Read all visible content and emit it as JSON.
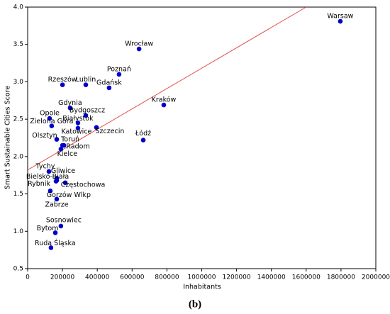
{
  "chart_data": {
    "type": "scatter",
    "xlabel": "Inhabitants",
    "ylabel": "Smart Sustainable Cities Score",
    "caption": "(b)",
    "color": "#0000cc",
    "points": [
      {
        "name": "Warsaw",
        "x": 1796000,
        "y": 3.81
      },
      {
        "name": "Wrocław",
        "x": 640000,
        "y": 3.44
      },
      {
        "name": "Poznań",
        "x": 525000,
        "y": 3.1
      },
      {
        "name": "Rzeszów",
        "x": 200000,
        "y": 2.96
      },
      {
        "name": "Lublin",
        "x": 334000,
        "y": 2.96
      },
      {
        "name": "Gdańsk",
        "x": 468000,
        "y": 2.92
      },
      {
        "name": "Kraków",
        "x": 782000,
        "y": 2.69
      },
      {
        "name": "Gdynia",
        "x": 244000,
        "y": 2.65
      },
      {
        "name": "Bydgoszcz",
        "x": 334000,
        "y": 2.55
      },
      {
        "name": "Opole",
        "x": 126000,
        "y": 2.51
      },
      {
        "name": "Białystok",
        "x": 289000,
        "y": 2.45
      },
      {
        "name": "Zielona Góra",
        "x": 138000,
        "y": 2.41
      },
      {
        "name": "Katowice",
        "x": 289000,
        "y": 2.38
      },
      {
        "name": "Szczecin",
        "x": 395000,
        "y": 2.39
      },
      {
        "name": "Łódź",
        "x": 664000,
        "y": 2.22
      },
      {
        "name": "Olsztyn",
        "x": 167000,
        "y": 2.23
      },
      {
        "name": "Toruń",
        "x": 200000,
        "y": 2.15
      },
      {
        "name": "Radom",
        "x": 208000,
        "y": 2.15
      },
      {
        "name": "Kielce",
        "x": 191000,
        "y": 2.1
      },
      {
        "name": "Tychy",
        "x": 122000,
        "y": 1.8
      },
      {
        "name": "Gliwice",
        "x": 167000,
        "y": 1.71
      },
      {
        "name": "Bielsko-Biała",
        "x": 167000,
        "y": 1.68
      },
      {
        "name": "Rybnik",
        "x": 163000,
        "y": 1.67
      },
      {
        "name": "Częstochowa",
        "x": 216000,
        "y": 1.65
      },
      {
        "name": "Gorzów Wlkp",
        "x": 130000,
        "y": 1.54
      },
      {
        "name": "Zabrze",
        "x": 167000,
        "y": 1.43
      },
      {
        "name": "Sosnowiec",
        "x": 191000,
        "y": 1.07
      },
      {
        "name": "Bytom",
        "x": 159000,
        "y": 0.98
      },
      {
        "name": "Ruda Śląska",
        "x": 134000,
        "y": 0.78
      }
    ],
    "trendline": {
      "color": "#e05050",
      "x": [
        0,
        1600000
      ],
      "y": [
        1.82,
        4.0
      ]
    },
    "xlim": [
      0,
      2000000
    ],
    "xticks": [
      0,
      200000,
      400000,
      600000,
      800000,
      1000000,
      1200000,
      1400000,
      1600000,
      1800000,
      2000000
    ],
    "ylim": [
      0.5,
      4.0
    ],
    "yticks": [
      0.5,
      {
        "value": 1,
        "label": "1.0"
      },
      1.5,
      {
        "value": 2,
        "label": "2.0"
      },
      2.5,
      {
        "value": 3,
        "label": "3.0"
      },
      3.5,
      {
        "value": 4,
        "label": "4.0"
      }
    ]
  }
}
